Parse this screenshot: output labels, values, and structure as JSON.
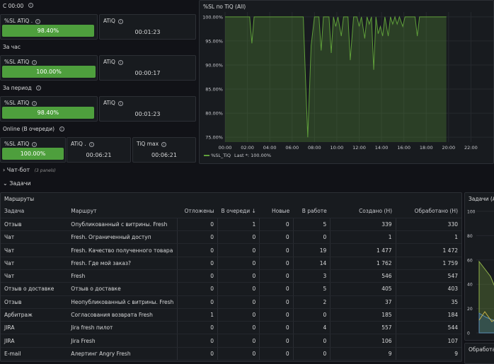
{
  "top": {
    "label": "С 00:00",
    "sl_label": "%SL ATiQ .",
    "sl_value": "98.40%",
    "sl_level": 0.984,
    "atiq_label": "ATiQ",
    "atiq_value": "00:01:23"
  },
  "hour": {
    "label": "За час",
    "sl_label": "%SL ATiQ",
    "sl_value": "100.00%",
    "sl_level": 1.0,
    "atiq_label": "ATiQ",
    "atiq_value": "00:00:17"
  },
  "period": {
    "label": "За период",
    "sl_label": "%SL ATiQ",
    "sl_value": "98.40%",
    "sl_level": 0.984,
    "atiq_label": "ATiQ",
    "atiq_value": "00:01:23"
  },
  "online": {
    "label": "Online (В очереди)",
    "sl_label": "%SL ATiQ",
    "sl_value": "100.00%",
    "sl_level": 1.0,
    "atiq_label": "ATiQ .",
    "atiq_value": "00:06:21",
    "tiq_label": "TiQ max",
    "tiq_value": "00:06:21"
  },
  "chart_panel": {
    "title": "%SL по TiQ (All)",
    "legend_name": "%SL_TiQ",
    "legend_last": "Last *: 100.00%"
  },
  "chart_data": {
    "type": "area",
    "title": "%SL по TiQ (All)",
    "x_ticks": [
      "00:00",
      "02:00",
      "04:00",
      "06:00",
      "08:00",
      "10:00",
      "12:00",
      "14:00",
      "16:00",
      "18:00",
      "20:00",
      "22:00"
    ],
    "y_ticks": [
      "100.00%",
      "95.00%",
      "90.00%",
      "85.00%",
      "80.00%",
      "75.00%"
    ],
    "ylim": [
      74,
      101
    ],
    "xlim": [
      0,
      24
    ],
    "series": [
      {
        "name": "%SL_TiQ",
        "color": "#5f9f3a",
        "points": [
          [
            0,
            100
          ],
          [
            2.2,
            100
          ],
          [
            2.4,
            94.5
          ],
          [
            2.6,
            100
          ],
          [
            7.0,
            100
          ],
          [
            7.2,
            87
          ],
          [
            7.4,
            75
          ],
          [
            7.7,
            94
          ],
          [
            8.0,
            100
          ],
          [
            8.4,
            100
          ],
          [
            8.6,
            93
          ],
          [
            8.8,
            100
          ],
          [
            9.3,
            100
          ],
          [
            9.5,
            92.5
          ],
          [
            9.7,
            100
          ],
          [
            9.9,
            98
          ],
          [
            10.1,
            100
          ],
          [
            10.4,
            96
          ],
          [
            10.6,
            100
          ],
          [
            11.0,
            100
          ],
          [
            11.2,
            91
          ],
          [
            11.5,
            100
          ],
          [
            11.8,
            100
          ],
          [
            12.0,
            98
          ],
          [
            12.2,
            100
          ],
          [
            12.5,
            95.5
          ],
          [
            12.7,
            100
          ],
          [
            12.9,
            98.5
          ],
          [
            13.1,
            100
          ],
          [
            13.3,
            89
          ],
          [
            13.5,
            100
          ],
          [
            13.7,
            96.5
          ],
          [
            13.9,
            98
          ],
          [
            14.1,
            96
          ],
          [
            14.3,
            100
          ],
          [
            14.6,
            96
          ],
          [
            14.8,
            100
          ],
          [
            15.0,
            98.5
          ],
          [
            15.2,
            100
          ],
          [
            15.4,
            98.5
          ],
          [
            15.6,
            100
          ],
          [
            15.9,
            98
          ],
          [
            16.1,
            100
          ],
          [
            17.0,
            100
          ],
          [
            17.2,
            96
          ],
          [
            17.4,
            100
          ],
          [
            19.8,
            100
          ]
        ]
      }
    ]
  },
  "sections": {
    "chatbot_label": "Чат-бот",
    "chatbot_count": "(3 panels)",
    "tasks_label": "Задачи"
  },
  "routes": {
    "title": "Маршруты",
    "columns": [
      "Задача",
      "Маршрут",
      "Отложены",
      "В очереди",
      "Новые",
      "В работе",
      "Создано (Н)",
      "Обработано (Н)"
    ],
    "sort_arrow": "↓",
    "rows": [
      [
        "Отзыв",
        "Опубликованный с витрины. Fresh",
        "0",
        "1",
        "0",
        "5",
        "339",
        "330"
      ],
      [
        "Чат",
        "Fresh. Ограниченный доступ",
        "0",
        "0",
        "0",
        "0",
        "1",
        "1"
      ],
      [
        "Чат",
        "Fresh. Качество полученного товара",
        "0",
        "0",
        "0",
        "19",
        "1 477",
        "1 472"
      ],
      [
        "Чат",
        "Fresh. Где мой заказ?",
        "0",
        "0",
        "0",
        "14",
        "1 762",
        "1 759"
      ],
      [
        "Чат",
        "Fresh",
        "0",
        "0",
        "0",
        "3",
        "546",
        "547"
      ],
      [
        "Отзыв о доставке",
        "Отзыв о доставке",
        "0",
        "0",
        "0",
        "5",
        "405",
        "403"
      ],
      [
        "Отзыв",
        "Неопубликованный с витрины. Fresh",
        "0",
        "0",
        "0",
        "2",
        "37",
        "35"
      ],
      [
        "Арбитраж",
        "Согласования возврата Fresh",
        "1",
        "0",
        "0",
        "0",
        "185",
        "184"
      ],
      [
        "JIRA",
        "Jira fresh пилот",
        "0",
        "0",
        "0",
        "4",
        "557",
        "544"
      ],
      [
        "JIRA",
        "Jira Fresh",
        "0",
        "0",
        "0",
        "0",
        "106",
        "107"
      ],
      [
        "E-mail",
        "Алертинг Angry Fresh",
        "0",
        "0",
        "0",
        "0",
        "9",
        "9"
      ]
    ]
  },
  "side_panel": {
    "title": "Задачи (А",
    "y_ticks": [
      "100",
      "80",
      "60",
      "40",
      "20",
      "0"
    ],
    "bottom_title": "Обработан"
  }
}
